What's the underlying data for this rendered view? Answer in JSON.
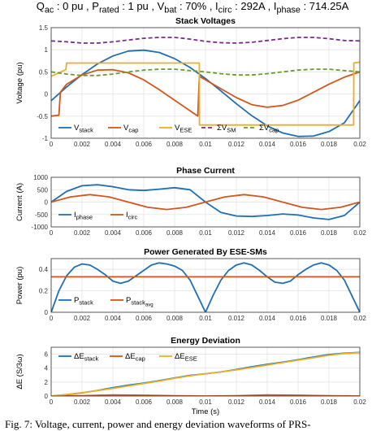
{
  "header": {
    "q": "Q",
    "q_sub": "ac",
    "q_val": " : 0 pu , P",
    "p_sub": "rated",
    "p_val": " : 1 pu , V",
    "v_sub": "bat",
    "v_val": " : 70% , I",
    "i_sub": "circ",
    "i_val": " : 292A , I",
    "ip_sub": "phase",
    "ip_val": " : 714.25A"
  },
  "caption": "Fig. 7: Voltage, current, power and energy deviation waveforms of PRS-",
  "x_tick_labels": [
    "0",
    "0.002",
    "0.004",
    "0.006",
    "0.008",
    "0.01",
    "0.012",
    "0.014",
    "0.016",
    "0.018",
    "0.02"
  ],
  "chart_data": [
    {
      "type": "line",
      "title": "Stack Voltages",
      "ylabel": "Voltage (pu)",
      "xlim": [
        0,
        0.02
      ],
      "ylim": [
        -1,
        1.5
      ],
      "yticks": [
        "-1",
        "-0.5",
        "0",
        "0.5",
        "1",
        "1.5"
      ],
      "grid": true,
      "legend": "bottom",
      "series": [
        {
          "name": "V",
          "sub": "stack",
          "color": "#1f6fb4",
          "style": "solid",
          "x": [
            0,
            0.001,
            0.002,
            0.003,
            0.004,
            0.005,
            0.006,
            0.007,
            0.008,
            0.009,
            0.01,
            0.011,
            0.012,
            0.013,
            0.014,
            0.015,
            0.016,
            0.017,
            0.018,
            0.019,
            0.02
          ],
          "y": [
            -0.15,
            0.16,
            0.44,
            0.68,
            0.86,
            0.97,
            0.99,
            0.94,
            0.8,
            0.6,
            0.35,
            0.07,
            -0.22,
            -0.49,
            -0.72,
            -0.88,
            -0.96,
            -0.95,
            -0.85,
            -0.65,
            -0.15
          ]
        },
        {
          "name": "V",
          "sub": "cap",
          "color": "#d2561e",
          "style": "solid",
          "x": [
            0,
            0.0005,
            0.0006,
            0.001,
            0.002,
            0.003,
            0.004,
            0.005,
            0.006,
            0.007,
            0.008,
            0.009,
            0.0095,
            0.0096,
            0.011,
            0.012,
            0.013,
            0.014,
            0.015,
            0.016,
            0.017,
            0.018,
            0.019,
            0.02
          ],
          "y": [
            -0.5,
            -0.48,
            0.04,
            0.22,
            0.43,
            0.54,
            0.55,
            0.48,
            0.32,
            0.1,
            -0.14,
            -0.38,
            -0.5,
            0.4,
            0.12,
            -0.08,
            -0.24,
            -0.3,
            -0.26,
            -0.14,
            0.04,
            0.22,
            0.38,
            0.5
          ]
        },
        {
          "name": "V",
          "sub": "ESE",
          "color": "#e8b028",
          "style": "solid",
          "x": [
            0,
            0.00095,
            0.001,
            0.0096,
            0.00961,
            0.0196,
            0.01961,
            0.02
          ],
          "y": [
            0.4,
            0.55,
            0.7,
            0.7,
            -0.7,
            -0.7,
            0.7,
            0.72
          ]
        },
        {
          "name": "ΣV",
          "sub": "SM",
          "color": "#7b2d8f",
          "style": "dashed",
          "x": [
            0,
            0.001,
            0.002,
            0.003,
            0.004,
            0.005,
            0.006,
            0.007,
            0.008,
            0.009,
            0.01,
            0.011,
            0.012,
            0.013,
            0.014,
            0.015,
            0.016,
            0.017,
            0.018,
            0.019,
            0.02
          ],
          "y": [
            1.2,
            1.18,
            1.15,
            1.15,
            1.18,
            1.22,
            1.26,
            1.28,
            1.28,
            1.24,
            1.19,
            1.16,
            1.15,
            1.17,
            1.21,
            1.25,
            1.28,
            1.28,
            1.25,
            1.21,
            1.2
          ]
        },
        {
          "name": "ΣV",
          "sub": "cap",
          "color": "#6a9a2f",
          "style": "dashed",
          "x": [
            0,
            0.001,
            0.002,
            0.003,
            0.004,
            0.005,
            0.006,
            0.007,
            0.008,
            0.009,
            0.01,
            0.011,
            0.012,
            0.013,
            0.014,
            0.015,
            0.016,
            0.017,
            0.018,
            0.019,
            0.02
          ],
          "y": [
            0.5,
            0.45,
            0.42,
            0.42,
            0.45,
            0.5,
            0.54,
            0.56,
            0.56,
            0.53,
            0.5,
            0.46,
            0.43,
            0.43,
            0.46,
            0.5,
            0.54,
            0.56,
            0.56,
            0.53,
            0.5
          ]
        }
      ]
    },
    {
      "type": "line",
      "title": "Phase Current",
      "ylabel": "Current (A)",
      "xlim": [
        0,
        0.02
      ],
      "ylim": [
        -1000,
        1000
      ],
      "yticks": [
        "-1000",
        "-500",
        "0",
        "500",
        "1000"
      ],
      "grid": true,
      "legend": "bottom-left",
      "series": [
        {
          "name": "I",
          "sub": "phase",
          "color": "#1f6fb4",
          "style": "solid",
          "x": [
            0,
            0.001,
            0.002,
            0.003,
            0.004,
            0.005,
            0.006,
            0.007,
            0.008,
            0.009,
            0.01,
            0.011,
            0.012,
            0.013,
            0.014,
            0.015,
            0.016,
            0.017,
            0.018,
            0.019,
            0.02
          ],
          "y": [
            0,
            430,
            660,
            700,
            620,
            500,
            470,
            520,
            580,
            500,
            0,
            -420,
            -560,
            -580,
            -540,
            -480,
            -520,
            -640,
            -700,
            -540,
            0
          ]
        },
        {
          "name": "I",
          "sub": "circ",
          "color": "#d2561e",
          "style": "solid",
          "x": [
            0,
            0.00125,
            0.0025,
            0.00375,
            0.005,
            0.00625,
            0.0075,
            0.00875,
            0.01,
            0.01125,
            0.0125,
            0.01375,
            0.015,
            0.01625,
            0.0175,
            0.01875,
            0.02
          ],
          "y": [
            0,
            210,
            300,
            210,
            0,
            -210,
            -300,
            -210,
            0,
            210,
            300,
            210,
            0,
            -210,
            -300,
            -210,
            0
          ]
        }
      ]
    },
    {
      "type": "line",
      "title": "Power Generated By ESE-SMs",
      "ylabel": "Power (pu)",
      "xlim": [
        0,
        0.02
      ],
      "ylim": [
        0,
        0.5
      ],
      "yticks": [
        "0",
        "0.2",
        "0.4"
      ],
      "grid": true,
      "legend": "bottom-left",
      "series": [
        {
          "name": "P",
          "sub": "stack",
          "color": "#1f6fb4",
          "style": "solid",
          "x": [
            0,
            0.0005,
            0.001,
            0.0015,
            0.002,
            0.0025,
            0.003,
            0.0035,
            0.004,
            0.0045,
            0.005,
            0.0055,
            0.006,
            0.0065,
            0.007,
            0.0075,
            0.008,
            0.0085,
            0.009,
            0.0095,
            0.01,
            0.0105,
            0.011,
            0.0115,
            0.012,
            0.0125,
            0.013,
            0.0135,
            0.014,
            0.0145,
            0.015,
            0.0155,
            0.016,
            0.0165,
            0.017,
            0.0175,
            0.018,
            0.0185,
            0.019,
            0.0195,
            0.02
          ],
          "y": [
            0,
            0.2,
            0.34,
            0.42,
            0.45,
            0.44,
            0.4,
            0.35,
            0.29,
            0.27,
            0.29,
            0.34,
            0.39,
            0.44,
            0.46,
            0.45,
            0.43,
            0.39,
            0.3,
            0.15,
            0,
            0.16,
            0.3,
            0.39,
            0.44,
            0.46,
            0.44,
            0.39,
            0.33,
            0.28,
            0.27,
            0.29,
            0.35,
            0.4,
            0.44,
            0.46,
            0.44,
            0.39,
            0.3,
            0.15,
            0
          ]
        },
        {
          "name": "P",
          "sub": "stack",
          "sub2": "avg",
          "color": "#d2561e",
          "style": "solid",
          "x": [
            0,
            0.02
          ],
          "y": [
            0.33,
            0.33
          ]
        }
      ]
    },
    {
      "type": "line",
      "title": "Energy Deviation",
      "ylabel": "ΔE (S/3ω)",
      "xlabel": "Time (s)",
      "xlim": [
        0,
        0.02
      ],
      "ylim": [
        0,
        7
      ],
      "yticks": [
        "0",
        "2",
        "4",
        "6"
      ],
      "grid": true,
      "legend": "top",
      "series": [
        {
          "name": "ΔE",
          "sub": "stack",
          "color": "#1f6fb4",
          "style": "solid",
          "x": [
            0,
            0.001,
            0.002,
            0.003,
            0.004,
            0.005,
            0.006,
            0.007,
            0.008,
            0.009,
            0.01,
            0.011,
            0.012,
            0.013,
            0.014,
            0.015,
            0.016,
            0.017,
            0.018,
            0.019,
            0.02
          ],
          "y": [
            0,
            0.2,
            0.45,
            0.8,
            1.2,
            1.55,
            1.85,
            2.2,
            2.6,
            2.95,
            3.2,
            3.45,
            3.8,
            4.2,
            4.55,
            4.85,
            5.2,
            5.6,
            5.95,
            6.15,
            6.25
          ]
        },
        {
          "name": "ΔE",
          "sub": "cap",
          "color": "#d2561e",
          "style": "solid",
          "x": [
            0,
            0.002,
            0.004,
            0.006,
            0.008,
            0.01,
            0.012,
            0.014,
            0.016,
            0.018,
            0.02
          ],
          "y": [
            0,
            0.05,
            0.15,
            0.12,
            0.05,
            0,
            0.05,
            0.15,
            0.12,
            0.05,
            0
          ]
        },
        {
          "name": "ΔE",
          "sub": "ESE",
          "color": "#e8b028",
          "style": "solid",
          "x": [
            0,
            0.001,
            0.002,
            0.003,
            0.004,
            0.005,
            0.006,
            0.007,
            0.008,
            0.009,
            0.01,
            0.011,
            0.012,
            0.013,
            0.014,
            0.015,
            0.016,
            0.017,
            0.018,
            0.019,
            0.02
          ],
          "y": [
            0,
            0.22,
            0.48,
            0.78,
            1.1,
            1.45,
            1.8,
            2.15,
            2.55,
            2.9,
            3.2,
            3.45,
            3.75,
            4.1,
            4.45,
            4.8,
            5.15,
            5.5,
            5.85,
            6.1,
            6.22
          ]
        }
      ]
    }
  ]
}
